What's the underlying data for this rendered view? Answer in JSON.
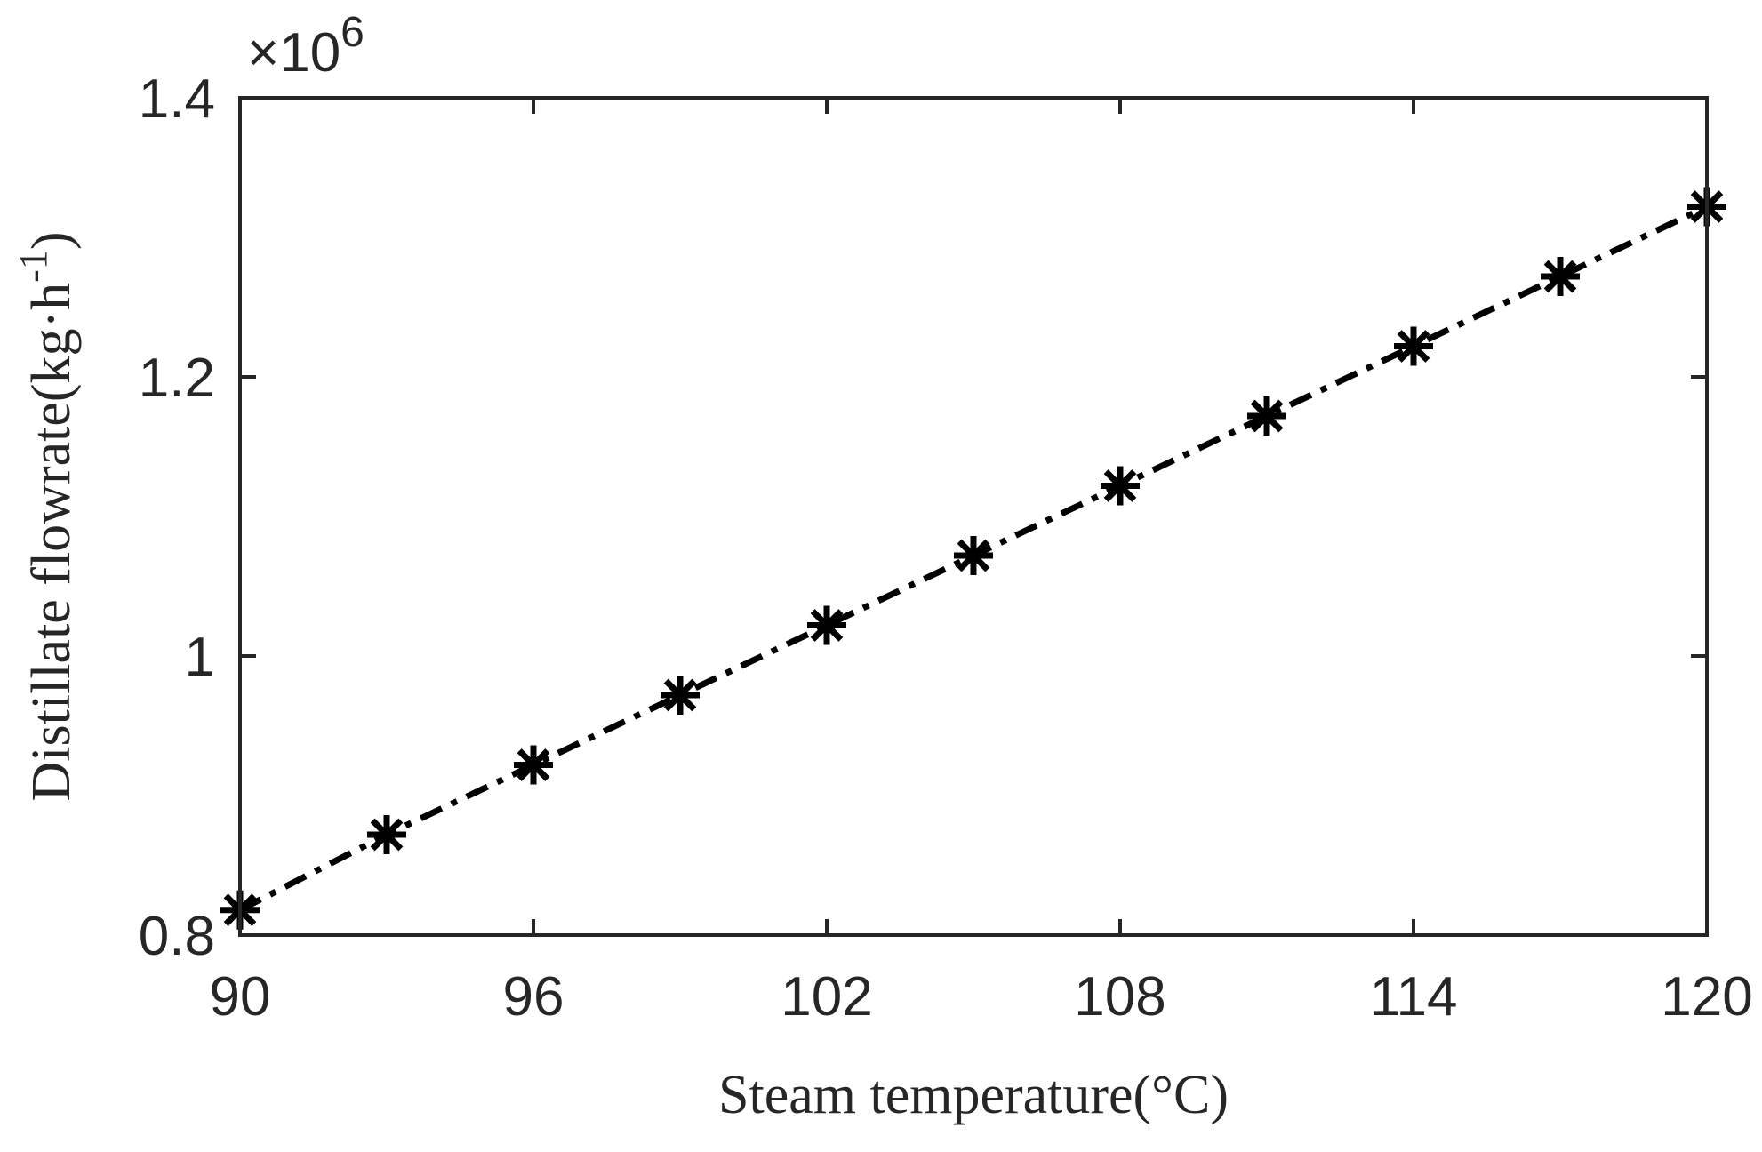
{
  "chart_data": {
    "type": "line",
    "xlabel": "Steam temperature(°C)",
    "ylabel": "Distillate flowrate(kg·h",
    "ylabel_superscript": "-1",
    "ylabel_suffix": ")",
    "y_multiplier": "×10",
    "y_multiplier_exponent": "6",
    "xlim": [
      90,
      120
    ],
    "ylim": [
      0.8,
      1.4
    ],
    "x_ticks": [
      "90",
      "96",
      "102",
      "108",
      "114",
      "120"
    ],
    "y_ticks": [
      "0.8",
      "1",
      "1.2",
      "1.4"
    ],
    "grid": false,
    "line_style": "dash-dot",
    "marker": "asterisk",
    "color": "#000000",
    "series": [
      {
        "x": [
          90,
          93,
          96,
          99,
          102,
          105,
          108,
          111,
          114,
          117,
          120
        ],
        "y": [
          0.818,
          0.872,
          0.922,
          0.972,
          1.022,
          1.072,
          1.122,
          1.172,
          1.222,
          1.272,
          1.322
        ]
      }
    ]
  }
}
